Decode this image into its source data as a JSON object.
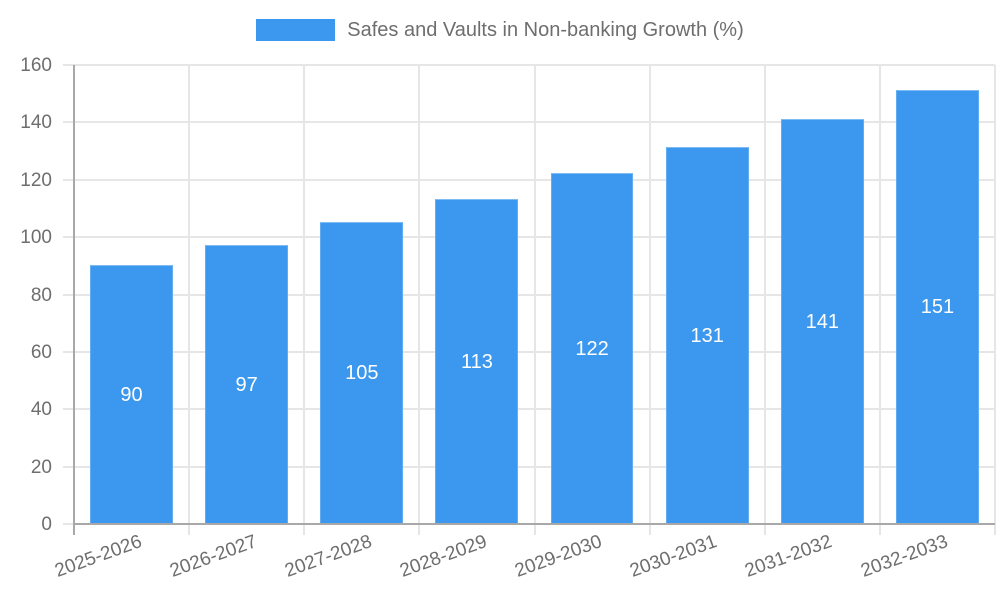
{
  "chart_data": {
    "type": "bar",
    "legend_label": "Safes and Vaults in Non-banking Growth (%)",
    "categories": [
      "2025-2026",
      "2026-2027",
      "2027-2028",
      "2028-2029",
      "2029-2030",
      "2030-2031",
      "2031-2032",
      "2032-2033"
    ],
    "values": [
      90,
      97,
      105,
      113,
      122,
      131,
      141,
      151
    ],
    "bar_value_labels": [
      "90",
      "97",
      "105",
      "113",
      "122",
      "131",
      "141",
      "151"
    ],
    "title": "",
    "xlabel": "",
    "ylabel": "",
    "ylim": [
      0,
      160
    ],
    "ytick_step": 20,
    "yticks": [
      0,
      20,
      40,
      60,
      80,
      100,
      120,
      140,
      160
    ],
    "grid": true,
    "legend_position": "top",
    "value_label_position": "inside-middle",
    "x_label_rotation_deg": -20
  },
  "colors": {
    "bar": "#3b98ee",
    "bar_value_text": "#ffffff",
    "grid": "#e6e6e6",
    "axis": "#a8a8a8",
    "tick_text": "#6e6e6e",
    "legend_text": "#6e6e6e",
    "background": "#ffffff"
  }
}
